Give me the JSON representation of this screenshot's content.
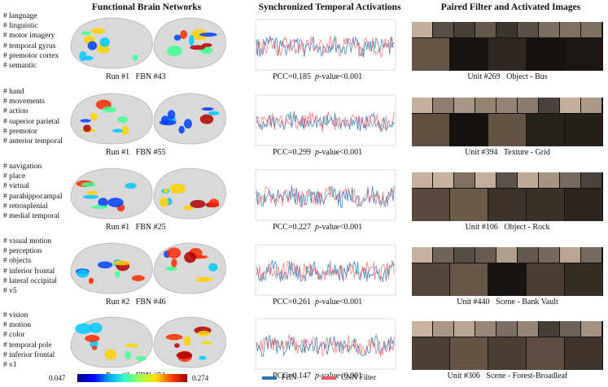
{
  "titles": {
    "col1": "Functional Brain Networks",
    "col2": "Synchronized Temporal Activations",
    "col3": "Paired Filter and Activated Images"
  },
  "rows": [
    {
      "tags": [
        "# language",
        "# linguistic",
        "# motor imagery",
        "# temporal gyrus",
        "# premotor cortex",
        "# semantic"
      ],
      "run": "Run #1",
      "fbn": "FBN #43",
      "pcc": "PCC=0.185",
      "pval_label": "p",
      "pval_rest": "-value<0.001",
      "unit": "Unit #269",
      "category": "Object - Bus"
    },
    {
      "tags": [
        "# hand",
        "# movements",
        "# action",
        "# superior parietal",
        "# premotor",
        "# anterior temporal"
      ],
      "run": "Run #1",
      "fbn": "FBN #55",
      "pcc": "PCC=0.299",
      "pval_label": "p",
      "pval_rest": "-value<0.001",
      "unit": "Unit #394",
      "category": "Texture - Grid"
    },
    {
      "tags": [
        "# navigation",
        "# place",
        "# virtual",
        "# parahippocampal",
        "# retrosplenial",
        "# medial temporal"
      ],
      "run": "Run #1",
      "fbn": "FBN #25",
      "pcc": "PCC=0.227",
      "pval_label": "p",
      "pval_rest": "-value<0.001",
      "unit": "Unit #106",
      "category": "Object - Rock"
    },
    {
      "tags": [
        "# visual motion",
        "# perception",
        "# objects",
        "# inferior frontal",
        "# lateral occipital",
        "# v5"
      ],
      "run": "Run #2",
      "fbn": "FBN #46",
      "pcc": "PCC=0.261",
      "pval_label": "p",
      "pval_rest": "-value<0.001",
      "unit": "Unit #440",
      "category": "Scene - Bank Vault"
    },
    {
      "tags": [
        "# vision",
        "# motion",
        "# color",
        "# temporal pole",
        "# inferior frontal",
        "# v1"
      ],
      "run": "Run #3",
      "fbn": "FBN #51",
      "pcc": "PCC=0.147",
      "pval_label": "p",
      "pval_rest": "-value<0.001",
      "unit": "Unit #306",
      "category": "Scene - Forest-Broadleaf"
    }
  ],
  "colorbar": {
    "min": "0.047",
    "max": "0.274"
  },
  "legend": {
    "fbn": {
      "label": "FBN",
      "color": "#2a78b8"
    },
    "cnn": {
      "label": "CNN Filter",
      "color": "#f05a5e"
    }
  }
}
